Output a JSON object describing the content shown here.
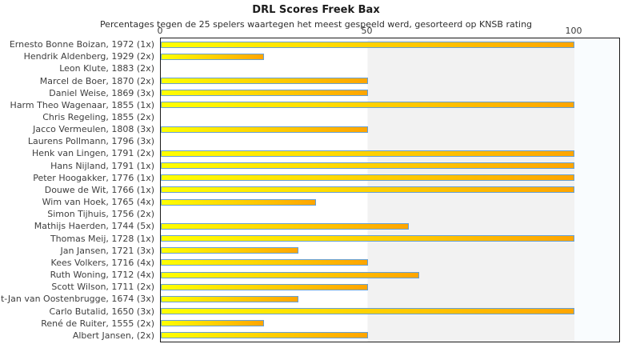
{
  "chart_data": {
    "type": "bar",
    "orientation": "horizontal",
    "title": "DRL Scores Freek Bax",
    "subtitle": "Percentages tegen de 25 spelers waartegen het meest gespeeld werd, gesorteerd op KNSB rating",
    "categories": [
      "Ernesto Bonne Boizan, 1972 (1x)",
      "Hendrik Aldenberg, 1929 (2x)",
      "Leon Klute, 1883 (2x)",
      "Marcel de Boer, 1870 (2x)",
      "Daniel Weise, 1869 (3x)",
      "Harm Theo Wagenaar, 1855 (1x)",
      "Chris Regeling, 1855 (2x)",
      "Jacco Vermeulen, 1808 (3x)",
      "Laurens Pollmann, 1796 (3x)",
      "Henk van Lingen, 1791 (2x)",
      "Hans Nijland, 1791 (1x)",
      "Peter Hoogakker, 1776 (1x)",
      "Douwe de Wit, 1766 (1x)",
      "Wim van Hoek, 1765 (4x)",
      "Simon Tijhuis, 1756 (2x)",
      "Mathijs Haerden, 1744 (5x)",
      "Thomas Meij, 1728 (1x)",
      "Jan Jansen, 1721 (3x)",
      "Kees Volkers, 1716 (4x)",
      "Ruth Woning, 1712 (4x)",
      "Scott Wilson, 1711 (2x)",
      "t-Jan van Oostenbrugge, 1674 (3x)",
      "Carlo Butalid, 1650 (3x)",
      "René de Ruiter, 1555 (2x)",
      "Albert Jansen,  (2x)"
    ],
    "values": [
      100,
      25,
      0,
      50,
      50,
      100,
      0,
      50,
      0,
      100,
      100,
      100,
      100,
      37.5,
      0,
      60,
      100,
      33.3,
      50,
      62.5,
      50,
      33.3,
      100,
      25,
      50
    ],
    "xlabel": "",
    "ylabel": "",
    "xlim": [
      0,
      111
    ],
    "xticks": [
      0,
      50,
      100
    ],
    "grid": false,
    "legend": false,
    "shaded_band": {
      "from": 50,
      "to": 100
    },
    "colors": {
      "bar_gradient_start": "#ffff00",
      "bar_gradient_end": "#ffa500",
      "bar_border": "#66a0d5",
      "band_fill": "#f2f2f2",
      "overflow_band_fill": "#f9fcfe",
      "plot_background": "#ffffff",
      "plot_border": "#1b1b1b",
      "text": "#3e3e3e"
    }
  }
}
